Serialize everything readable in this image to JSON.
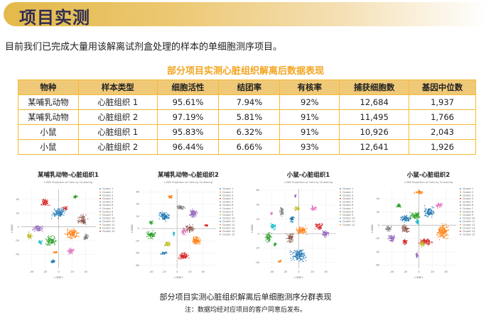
{
  "header": {
    "title": "项目实测"
  },
  "intro": "目前我们已完成大量用该解离试剂盒处理的样本的单细胞测序项目。",
  "table": {
    "title": "部分项目实测心脏组织解离后数据表现",
    "columns": [
      "物种",
      "样本类型",
      "细胞活性",
      "结团率",
      "有核率",
      "捕获细胞数",
      "基因中位数"
    ],
    "rows": [
      [
        "某哺乳动物",
        "心脏组织 1",
        "95.61%",
        "7.94%",
        "92%",
        "12,684",
        "1,937"
      ],
      [
        "某哺乳动物",
        "心脏组织 2",
        "97.19%",
        "5.81%",
        "91%",
        "11,495",
        "1,766"
      ],
      [
        "小鼠",
        "心脏组织 1",
        "95.83%",
        "6.32%",
        "91%",
        "10,926",
        "2,043"
      ],
      [
        "小鼠",
        "心脏组织 2",
        "96.44%",
        "6.66%",
        "93%",
        "12,641",
        "1,926"
      ]
    ]
  },
  "caption": "部分项目实测心脏组织解离后单细胞测序分群表现",
  "note": "注：数据均经对应项目的客户同意后发布。",
  "colors": [
    "#1f77b4",
    "#ff7f0e",
    "#2ca02c",
    "#d62728",
    "#9467bd",
    "#8c564b",
    "#e377c2",
    "#7f7f7f",
    "#bcbd22",
    "#17becf",
    "#1f77b4",
    "#ff7f0e",
    "#2ca02c",
    "#d62728",
    "#9467bd"
  ],
  "chart_data": [
    {
      "type": "scatter",
      "title": "某哺乳动物-心脏组织1",
      "subtitle": "t-SNE Projection of Cells by Clustering",
      "xlabel": "t-SNE1",
      "ylabel": "t-SNE2",
      "xlim": [
        -55,
        55
      ],
      "ylim": [
        -60,
        55
      ],
      "xticks": [
        -40,
        -20,
        0,
        20,
        40
      ],
      "yticks": [
        -40,
        -20,
        0,
        20,
        40
      ],
      "legend": [
        "Cluster 1",
        "Cluster 2",
        "Cluster 3",
        "Cluster 4",
        "Cluster 5",
        "Cluster 6",
        "Cluster 7",
        "Cluster 8",
        "Cluster 9",
        "Cluster 10",
        "Cluster 11",
        "Cluster 12",
        "Cluster 13",
        "Cluster 14"
      ],
      "clusters": [
        [
          0,
          20,
          12,
          9,
          0
        ],
        [
          -8,
          -50,
          4,
          3,
          0
        ],
        [
          20,
          -10,
          12,
          9,
          1
        ],
        [
          -5,
          -37,
          5,
          2,
          1
        ],
        [
          -12,
          -20,
          10,
          9,
          2
        ],
        [
          25,
          43,
          4,
          3,
          2
        ],
        [
          -20,
          35,
          7,
          8,
          3
        ],
        [
          10,
          27,
          5,
          3,
          3
        ],
        [
          -30,
          -2,
          10,
          6,
          4
        ],
        [
          35,
          10,
          9,
          9,
          5
        ],
        [
          18,
          -35,
          7,
          6,
          6
        ],
        [
          40,
          -15,
          5,
          6,
          7
        ],
        [
          -43,
          -13,
          5,
          6,
          8
        ],
        [
          -27,
          -22,
          4,
          4,
          9
        ]
      ]
    },
    {
      "type": "scatter",
      "title": "某哺乳动物-心脏组织2",
      "subtitle": "t-SNE Projection of Cells by Clustering",
      "xlabel": "t-SNE1",
      "ylabel": "t-SNE2",
      "xlim": [
        -55,
        60
      ],
      "ylim": [
        -65,
        65
      ],
      "xticks": [
        -40,
        -20,
        0,
        20,
        40
      ],
      "yticks": [
        -60,
        -40,
        -20,
        0,
        20,
        40,
        60
      ],
      "legend": [
        "Cluster 1",
        "Cluster 2",
        "Cluster 3",
        "Cluster 4",
        "Cluster 5",
        "Cluster 6",
        "Cluster 7",
        "Cluster 8",
        "Cluster 9",
        "Cluster 10",
        "Cluster 11",
        "Cluster 12",
        "Cluster 13",
        "Cluster 14",
        "Cluster 15"
      ],
      "clusters": [
        [
          -20,
          20,
          10,
          9,
          0
        ],
        [
          -20,
          -40,
          6,
          3,
          0
        ],
        [
          30,
          -20,
          9,
          9,
          1
        ],
        [
          -10,
          52,
          5,
          3,
          1
        ],
        [
          -40,
          -10,
          9,
          8,
          2
        ],
        [
          -40,
          10,
          4,
          4,
          2
        ],
        [
          10,
          -45,
          10,
          8,
          3
        ],
        [
          45,
          5,
          4,
          2,
          3
        ],
        [
          25,
          25,
          9,
          8,
          4
        ],
        [
          20,
          0,
          8,
          8,
          5
        ],
        [
          10,
          -5,
          5,
          8,
          6
        ],
        [
          5,
          35,
          8,
          5,
          7
        ],
        [
          -15,
          -25,
          6,
          5,
          8
        ],
        [
          -5,
          -8,
          2,
          4,
          9
        ]
      ]
    },
    {
      "type": "scatter",
      "title": "小鼠-心脏组织1",
      "subtitle": "t-SNE Projection of Cells by Clustering",
      "xlabel": "t-SNE1",
      "ylabel": "t-SNE2",
      "xlim": [
        -55,
        55
      ],
      "ylim": [
        -48,
        62
      ],
      "xticks": [
        -40,
        -20,
        0,
        20,
        40
      ],
      "yticks": [
        -40,
        -20,
        0,
        20,
        40,
        60
      ],
      "legend": [
        "Cluster 1",
        "Cluster 2",
        "Cluster 3",
        "Cluster 4",
        "Cluster 5",
        "Cluster 6",
        "Cluster 7",
        "Cluster 8",
        "Cluster 9",
        "Cluster 10",
        "Cluster 11",
        "Cluster 12"
      ],
      "clusters": [
        [
          0,
          -30,
          14,
          11,
          0
        ],
        [
          -10,
          20,
          4,
          6,
          0
        ],
        [
          5,
          5,
          11,
          7,
          1
        ],
        [
          -28,
          -38,
          3,
          2,
          1
        ],
        [
          -45,
          -5,
          6,
          9,
          2
        ],
        [
          -35,
          -15,
          3,
          3,
          2
        ],
        [
          30,
          10,
          8,
          6,
          3
        ],
        [
          40,
          0,
          7,
          6,
          4
        ],
        [
          -5,
          52,
          2,
          3,
          4
        ],
        [
          -13,
          -5,
          6,
          10,
          5
        ],
        [
          22,
          35,
          5,
          5,
          6
        ],
        [
          -40,
          28,
          2,
          2,
          6
        ],
        [
          -25,
          30,
          4,
          8,
          7
        ],
        [
          -2,
          35,
          5,
          4,
          8
        ],
        [
          -38,
          10,
          5,
          6,
          9
        ]
      ]
    },
    {
      "type": "scatter",
      "title": "小鼠-心脏组织2",
      "subtitle": "t-SNE Projection of Cells by Clustering",
      "xlabel": "t-SNE1",
      "ylabel": "t-SNE2",
      "xlim": [
        -55,
        55
      ],
      "ylim": [
        -65,
        55
      ],
      "xticks": [
        -40,
        -20,
        0,
        20,
        40
      ],
      "yticks": [
        -60,
        -40,
        -20,
        0,
        20,
        40
      ],
      "legend": [
        "Cluster 1",
        "Cluster 2",
        "Cluster 3",
        "Cluster 4",
        "Cluster 5",
        "Cluster 6",
        "Cluster 7",
        "Cluster 8",
        "Cluster 9",
        "Cluster 10",
        "Cluster 11",
        "Cluster 12",
        "Cluster 13",
        "Cluster 14",
        "Cluster 15"
      ],
      "clusters": [
        [
          -20,
          10,
          9,
          7,
          0
        ],
        [
          15,
          20,
          9,
          10,
          0
        ],
        [
          35,
          -10,
          11,
          14,
          1
        ],
        [
          0,
          50,
          8,
          3,
          1
        ],
        [
          -5,
          15,
          10,
          8,
          2
        ],
        [
          -30,
          30,
          4,
          4,
          2
        ],
        [
          10,
          -25,
          14,
          7,
          3
        ],
        [
          -20,
          -25,
          5,
          5,
          3
        ],
        [
          -40,
          -20,
          7,
          7,
          4
        ],
        [
          30,
          30,
          7,
          5,
          6
        ],
        [
          -3,
          -45,
          2,
          6,
          4
        ],
        [
          -20,
          -5,
          8,
          7,
          5
        ],
        [
          -45,
          -5,
          6,
          5,
          7
        ],
        [
          5,
          -28,
          5,
          5,
          8
        ],
        [
          -2,
          5,
          4,
          4,
          9
        ]
      ]
    }
  ]
}
